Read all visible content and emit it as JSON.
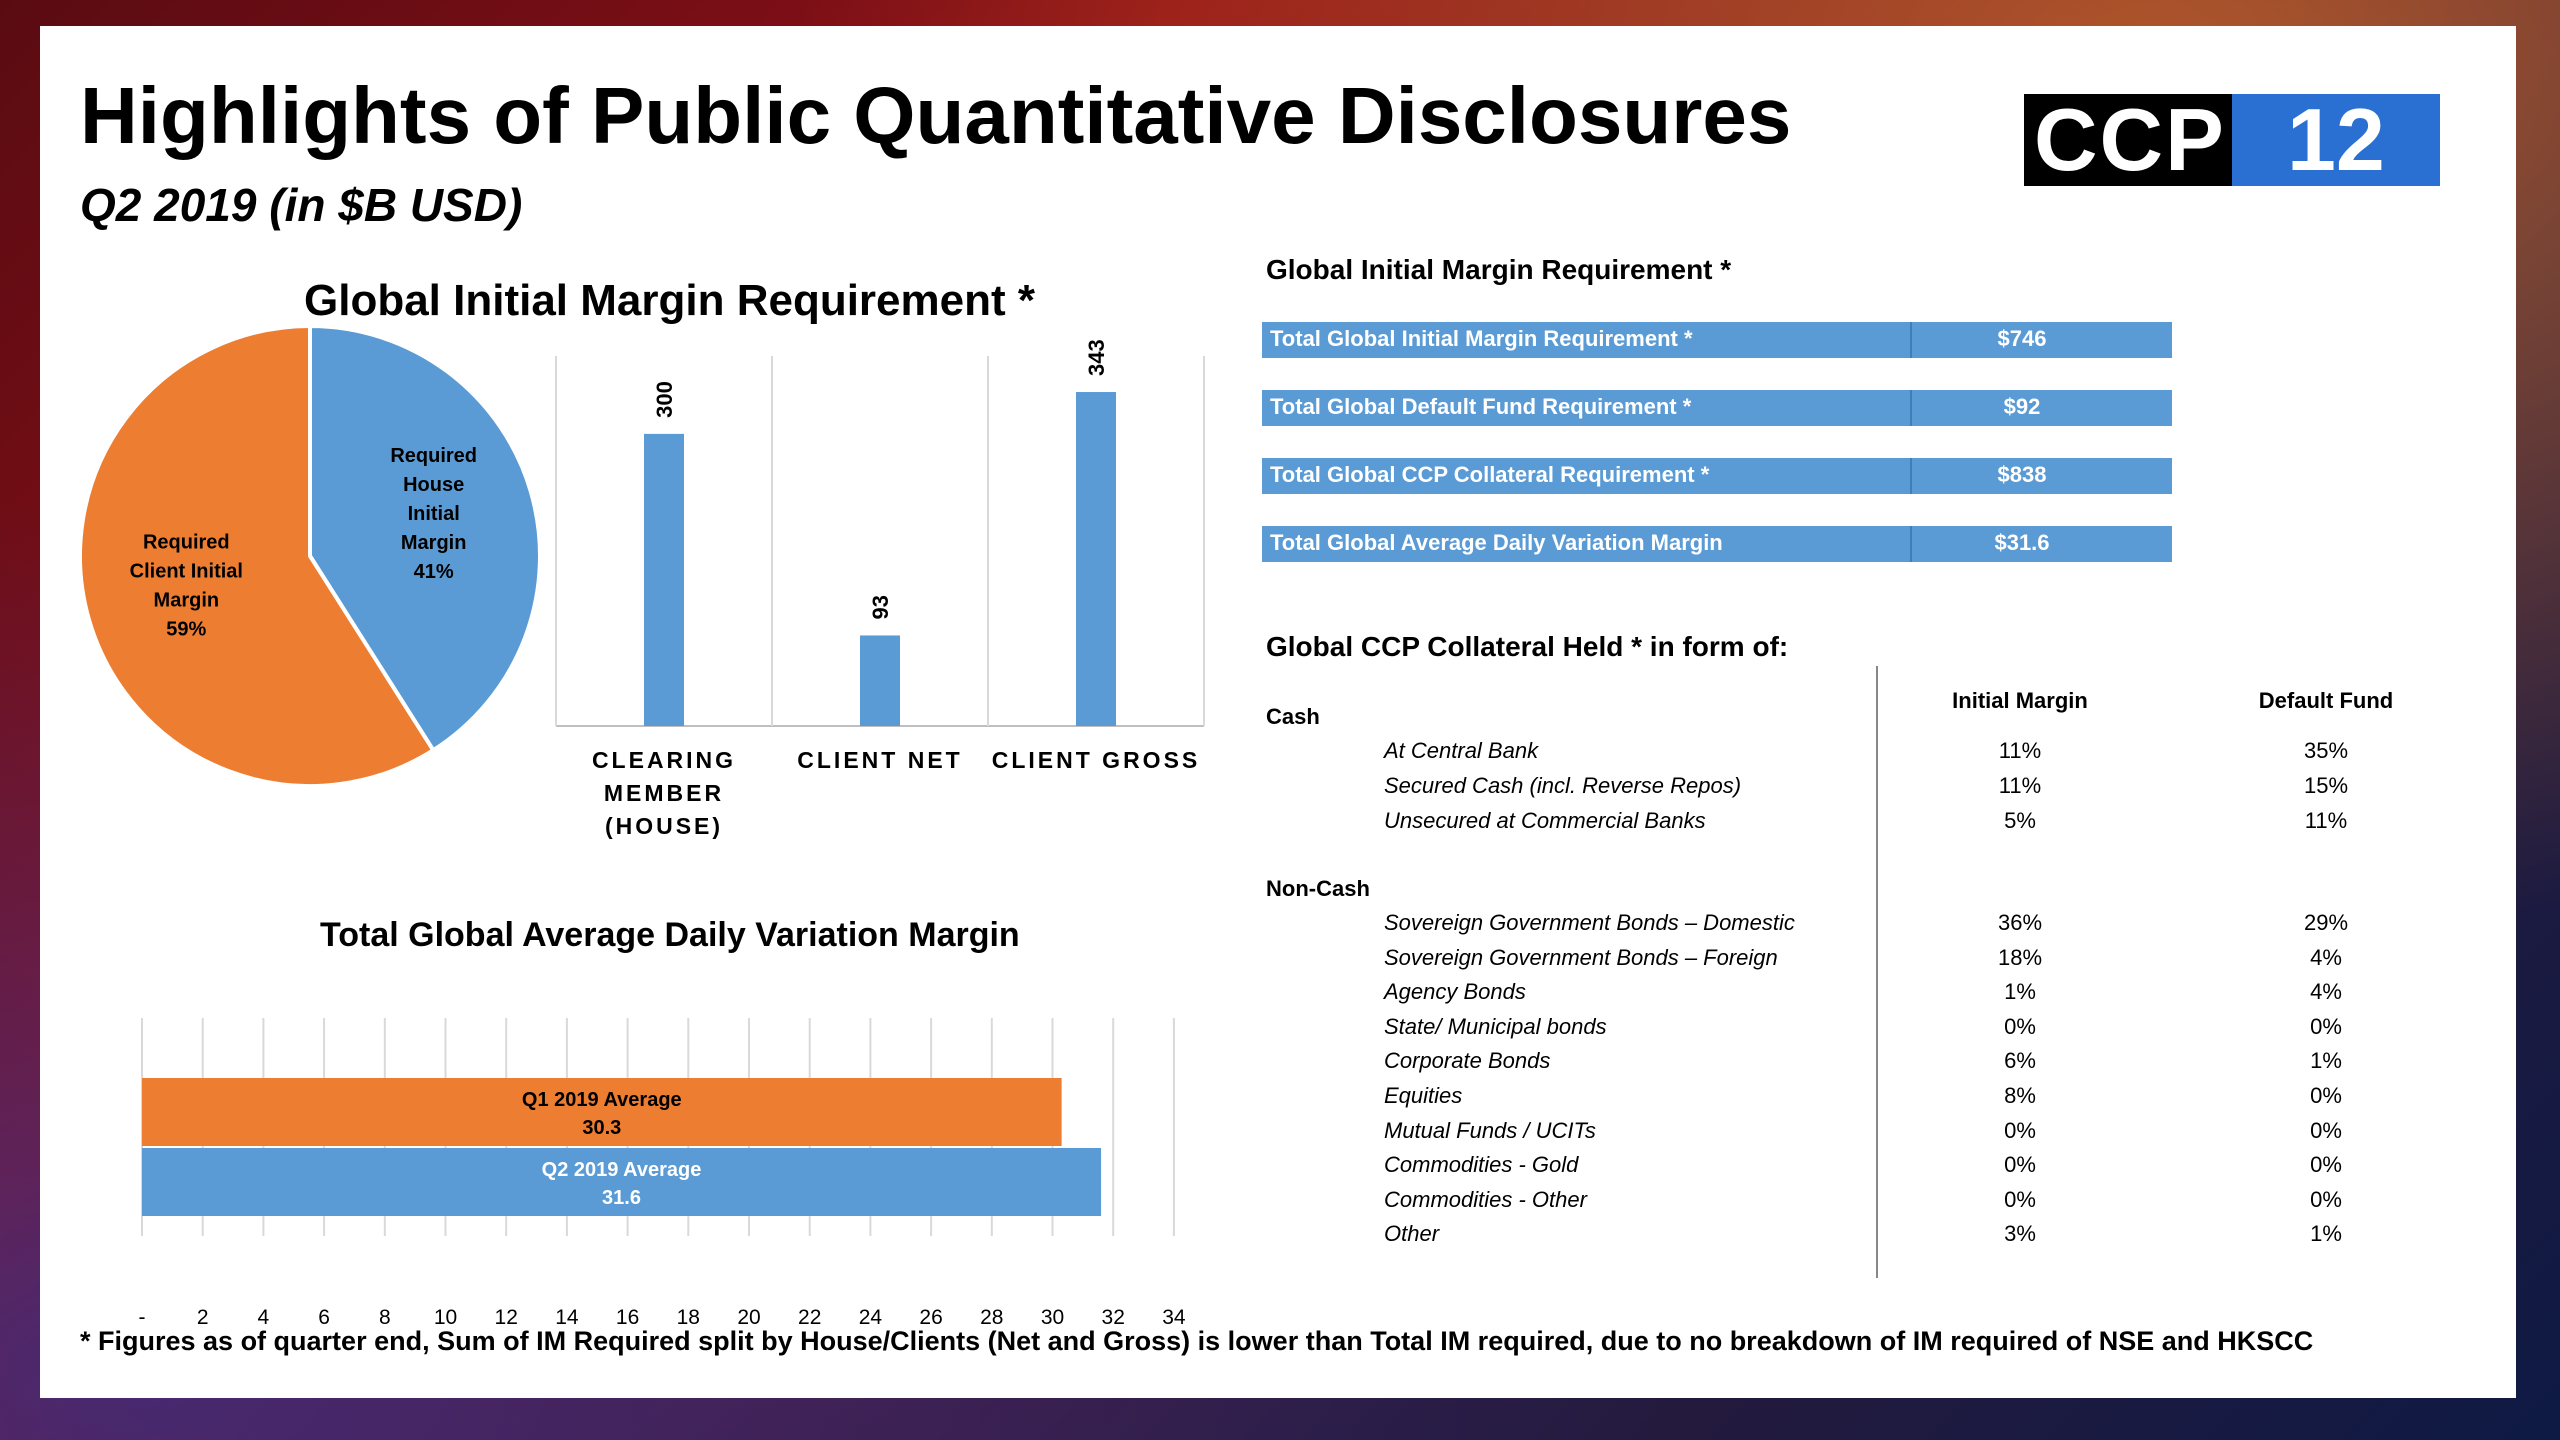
{
  "header": {
    "title": "Highlights of Public Quantitative Disclosures",
    "subtitle": "Q2 2019 (in $B USD)",
    "logo_text_left": "CCP",
    "logo_text_right": "12"
  },
  "colors": {
    "orange": "#ed7d31",
    "blue": "#5b9bd5",
    "logo_blue": "#2a6fd2"
  },
  "left_title": "Global Initial Margin Requirement *",
  "hbar_title": "Total Global Average Daily Variation Margin",
  "chart_data": [
    {
      "type": "pie",
      "slices": [
        {
          "label": "Required Client Initial Margin",
          "percent_label": "59%",
          "value": 59,
          "color": "#ed7d31"
        },
        {
          "label": "Required House Initial Margin",
          "percent_label": "41%",
          "value": 41,
          "color": "#5b9bd5"
        }
      ]
    },
    {
      "type": "bar",
      "categories": [
        "CLEARING MEMBER (HOUSE)",
        "CLIENT NET",
        "CLIENT GROSS"
      ],
      "category_lines": [
        [
          "CLEARING",
          "MEMBER",
          "(HOUSE)"
        ],
        [
          "CLIENT NET"
        ],
        [
          "CLIENT GROSS"
        ]
      ],
      "values": [
        300,
        93,
        343
      ],
      "ylim": [
        0,
        380
      ],
      "color": "#5b9bd5"
    },
    {
      "type": "bar",
      "orientation": "horizontal",
      "categories": [
        "Q1 2019 Average",
        "Q2 2019 Average"
      ],
      "values": [
        30.3,
        31.6
      ],
      "value_labels": [
        "30.3",
        "31.6"
      ],
      "colors": [
        "#ed7d31",
        "#5b9bd5"
      ],
      "xlim": [
        0,
        35
      ],
      "xticks": [
        "-",
        "2",
        "4",
        "6",
        "8",
        "10",
        "12",
        "14",
        "16",
        "18",
        "20",
        "22",
        "24",
        "26",
        "28",
        "30",
        "32",
        "34"
      ],
      "grid": true
    }
  ],
  "right": {
    "im_title": "Global Initial Margin Requirement *",
    "totals": [
      {
        "label": "Total Global Initial Margin Requirement *",
        "value": "$746"
      },
      {
        "label": "Total Global Default Fund Requirement *",
        "value": "$92"
      },
      {
        "label": "Total Global CCP Collateral Requirement *",
        "value": "$838"
      },
      {
        "label": "Total Global Average Daily Variation Margin",
        "value": "$31.6"
      }
    ],
    "collateral_title": "Global CCP Collateral Held * in form of:",
    "col_headers": {
      "im": "Initial Margin",
      "df": "Default Fund"
    },
    "cash_label": "Cash",
    "cash_rows": [
      {
        "label": "At Central Bank",
        "im": "11%",
        "df": "35%"
      },
      {
        "label": "Secured Cash (incl. Reverse Repos)",
        "im": "11%",
        "df": "15%"
      },
      {
        "label": "Unsecured at Commercial Banks",
        "im": "5%",
        "df": "11%"
      }
    ],
    "noncash_label": "Non-Cash",
    "noncash_rows": [
      {
        "label": "Sovereign Government Bonds – Domestic",
        "im": "36%",
        "df": "29%"
      },
      {
        "label": "Sovereign Government Bonds – Foreign",
        "im": "18%",
        "df": "4%"
      },
      {
        "label": "Agency Bonds",
        "im": "1%",
        "df": "4%"
      },
      {
        "label": "State/ Municipal bonds",
        "im": "0%",
        "df": "0%"
      },
      {
        "label": "Corporate Bonds",
        "im": "6%",
        "df": "1%"
      },
      {
        "label": "Equities",
        "im": "8%",
        "df": "0%"
      },
      {
        "label": "Mutual Funds / UCITs",
        "im": "0%",
        "df": "0%"
      },
      {
        "label": "Commodities - Gold",
        "im": "0%",
        "df": "0%"
      },
      {
        "label": "Commodities - Other",
        "im": "0%",
        "df": "0%"
      },
      {
        "label": "Other",
        "im": "3%",
        "df": "1%"
      }
    ]
  },
  "footnote": "* Figures as of quarter end, Sum of IM Required split by House/Clients (Net and Gross) is lower than Total IM required, due to no breakdown of IM required of NSE and HKSCC"
}
